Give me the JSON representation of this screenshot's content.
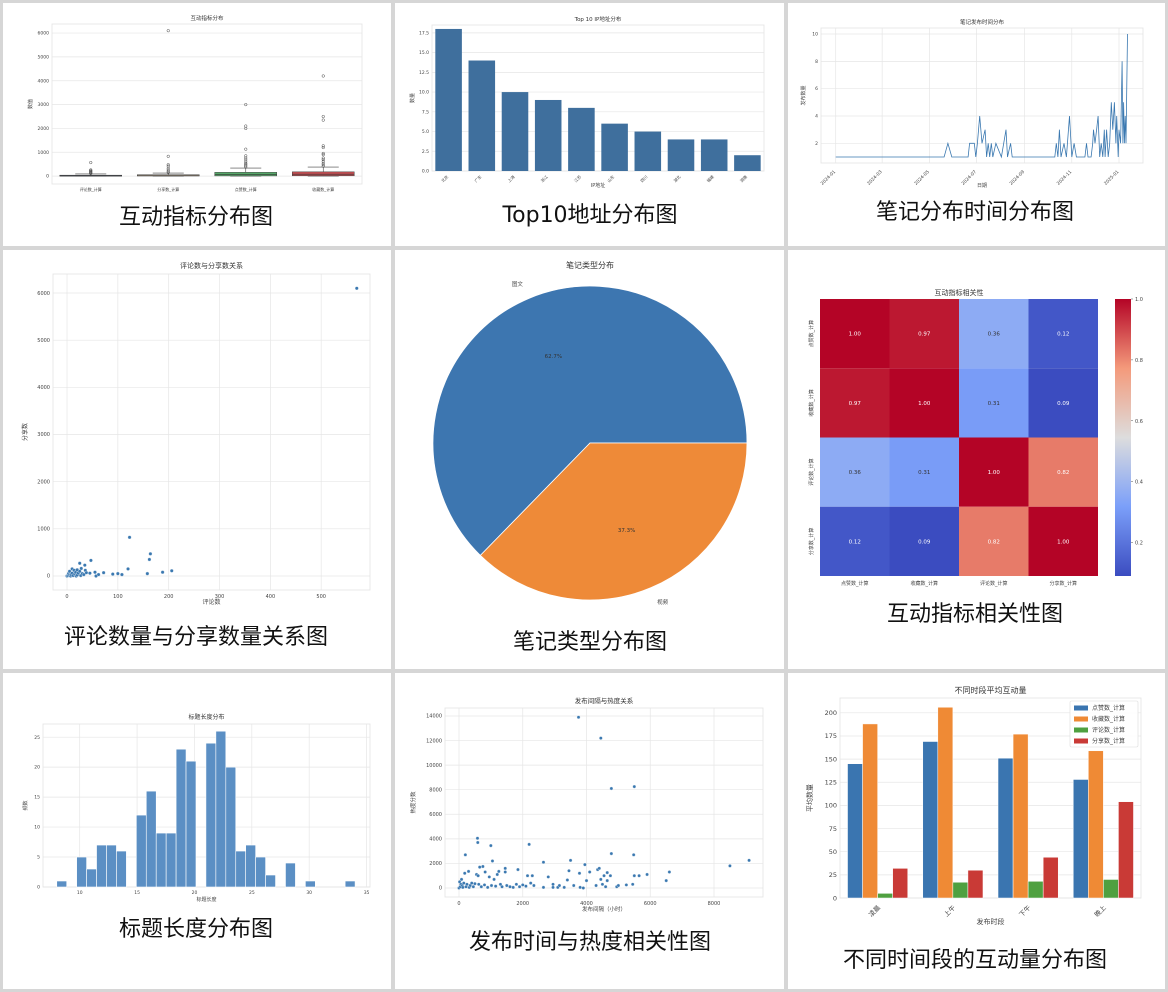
{
  "panels": [
    {
      "caption": "互动指标分布图"
    },
    {
      "caption": "Top10地址分布图"
    },
    {
      "caption": "笔记分布时间分布图"
    },
    {
      "caption": "评论数量与分享数量关系图"
    },
    {
      "caption": "笔记类型分布图"
    },
    {
      "caption": "互动指标相关性图"
    },
    {
      "caption": "标题长度分布图"
    },
    {
      "caption": "发布时间与热度相关性图"
    },
    {
      "caption": "不同时间段的互动量分布图"
    }
  ],
  "chart_data": [
    {
      "type": "box",
      "title": "互动指标分布",
      "xlabel": "",
      "ylabel": "数值",
      "grid": true,
      "categories": [
        "评论数_计算",
        "分享数_计算",
        "点赞数_计算",
        "收藏数_计算"
      ],
      "colors": [
        "#4c72b0",
        "#c9b59a",
        "#55a868",
        "#c44e52"
      ],
      "ylim": [
        -330,
        6380
      ],
      "yticks": [
        0,
        1000,
        2000,
        3000,
        4000,
        5000,
        6000
      ],
      "boxes": [
        {
          "whisker_low": 0,
          "q1": 5,
          "median": 15,
          "q3": 40,
          "whisker_high": 90,
          "outliers": [
            110,
            140,
            170,
            200,
            230,
            260,
            570
          ]
        },
        {
          "whisker_low": 0,
          "q1": 5,
          "median": 20,
          "q3": 60,
          "whisker_high": 130,
          "outliers": [
            150,
            200,
            260,
            330,
            420,
            480,
            830,
            6100
          ]
        },
        {
          "whisker_low": 0,
          "q1": 10,
          "median": 60,
          "q3": 160,
          "whisker_high": 340,
          "outliers": [
            380,
            430,
            480,
            530,
            600,
            680,
            760,
            850,
            1130,
            2000,
            2100,
            3000
          ]
        },
        {
          "whisker_low": 0,
          "q1": 15,
          "median": 80,
          "q3": 180,
          "whisker_high": 380,
          "outliers": [
            420,
            480,
            540,
            620,
            700,
            760,
            900,
            950,
            1200,
            1270,
            2350,
            2500,
            4200
          ]
        }
      ]
    },
    {
      "type": "bar",
      "title": "Top 10 IP地址分布",
      "xlabel": "IP地址",
      "ylabel": "数量",
      "grid": true,
      "color": "#3f6f9d",
      "categories": [
        "北京",
        "广东",
        "上海",
        "浙江",
        "江苏",
        "山东",
        "四川",
        "湖北",
        "福建",
        "湖南"
      ],
      "values": [
        18,
        14,
        10,
        9,
        8,
        6,
        5,
        4,
        4,
        2
      ],
      "ylim": [
        0,
        18.5
      ],
      "yticks": [
        "0.0",
        "2.5",
        "5.0",
        "7.5",
        "10.0",
        "12.5",
        "15.0",
        "17.5"
      ]
    },
    {
      "type": "line",
      "title": "笔记发布时间分布",
      "xlabel": "日期",
      "ylabel": "发布数量",
      "grid": true,
      "color": "#3a78b0",
      "xlim": [
        "2023-12-13",
        "2025-02-01"
      ],
      "ylim": [
        0.56,
        10.44
      ],
      "xticks": [
        "2024-01",
        "2024-03",
        "2024-05",
        "2024-07",
        "2024-09",
        "2024-11",
        "2025-01"
      ],
      "yticks": [
        2,
        4,
        6,
        8,
        10
      ],
      "points": [
        [
          "2024-01-01",
          1
        ],
        [
          "2024-05-20",
          1
        ],
        [
          "2024-05-25",
          2
        ],
        [
          "2024-05-30",
          1
        ],
        [
          "2024-06-20",
          1
        ],
        [
          "2024-06-22",
          2
        ],
        [
          "2024-06-28",
          2
        ],
        [
          "2024-06-30",
          1
        ],
        [
          "2024-07-02",
          2
        ],
        [
          "2024-07-05",
          4
        ],
        [
          "2024-07-08",
          2
        ],
        [
          "2024-07-12",
          3
        ],
        [
          "2024-07-14",
          1
        ],
        [
          "2024-07-16",
          2
        ],
        [
          "2024-07-18",
          1
        ],
        [
          "2024-07-20",
          2
        ],
        [
          "2024-07-22",
          1
        ],
        [
          "2024-07-26",
          2
        ],
        [
          "2024-08-02",
          1
        ],
        [
          "2024-08-08",
          3
        ],
        [
          "2024-08-10",
          1
        ],
        [
          "2024-08-14",
          2
        ],
        [
          "2024-08-16",
          1
        ],
        [
          "2024-10-10",
          1
        ],
        [
          "2024-10-12",
          2
        ],
        [
          "2024-10-14",
          1
        ],
        [
          "2024-10-16",
          3
        ],
        [
          "2024-10-18",
          1
        ],
        [
          "2024-10-22",
          2
        ],
        [
          "2024-10-25",
          1
        ],
        [
          "2024-10-29",
          4
        ],
        [
          "2024-11-01",
          1
        ],
        [
          "2024-11-04",
          2
        ],
        [
          "2024-11-07",
          1
        ],
        [
          "2024-11-18",
          1
        ],
        [
          "2024-11-20",
          2
        ],
        [
          "2024-11-22",
          1
        ],
        [
          "2024-11-26",
          1
        ],
        [
          "2024-11-28",
          2
        ],
        [
          "2024-11-29",
          3
        ],
        [
          "2024-12-01",
          2
        ],
        [
          "2024-12-03",
          3
        ],
        [
          "2024-12-05",
          4
        ],
        [
          "2024-12-07",
          1
        ],
        [
          "2024-12-09",
          2
        ],
        [
          "2024-12-11",
          1
        ],
        [
          "2024-12-13",
          3
        ],
        [
          "2024-12-14",
          1
        ],
        [
          "2024-12-16",
          3
        ],
        [
          "2024-12-18",
          1
        ],
        [
          "2024-12-20",
          2
        ],
        [
          "2024-12-22",
          5
        ],
        [
          "2024-12-24",
          3
        ],
        [
          "2024-12-26",
          5
        ],
        [
          "2024-12-28",
          2
        ],
        [
          "2024-12-29",
          4
        ],
        [
          "2024-12-31",
          1
        ],
        [
          "2025-01-01",
          3
        ],
        [
          "2025-01-03",
          2
        ],
        [
          "2025-01-05",
          8
        ],
        [
          "2025-01-06",
          2
        ],
        [
          "2025-01-07",
          5
        ],
        [
          "2025-01-08",
          2
        ],
        [
          "2025-01-09",
          4
        ],
        [
          "2025-01-10",
          2
        ],
        [
          "2025-01-12",
          10
        ]
      ]
    },
    {
      "type": "scatter",
      "title": "评论数与分享数关系",
      "xlabel": "评论数",
      "ylabel": "分享数",
      "grid": true,
      "color": "#3a78b0",
      "xlim": [
        -27.6,
        596
      ],
      "ylim": [
        -297,
        6403
      ],
      "xticks": [
        0,
        100,
        200,
        300,
        400,
        500
      ],
      "yticks": [
        0,
        1000,
        2000,
        3000,
        4000,
        5000,
        6000
      ],
      "points": [
        [
          0,
          0
        ],
        [
          2,
          10
        ],
        [
          3,
          50
        ],
        [
          5,
          20
        ],
        [
          5,
          100
        ],
        [
          7,
          0
        ],
        [
          8,
          30
        ],
        [
          10,
          150
        ],
        [
          10,
          60
        ],
        [
          12,
          10
        ],
        [
          14,
          120
        ],
        [
          15,
          40
        ],
        [
          17,
          80
        ],
        [
          18,
          0
        ],
        [
          20,
          130
        ],
        [
          20,
          20
        ],
        [
          22,
          60
        ],
        [
          25,
          270
        ],
        [
          25,
          100
        ],
        [
          27,
          10
        ],
        [
          28,
          160
        ],
        [
          30,
          50
        ],
        [
          33,
          30
        ],
        [
          35,
          230
        ],
        [
          36,
          120
        ],
        [
          38,
          70
        ],
        [
          45,
          60
        ],
        [
          47,
          330
        ],
        [
          55,
          80
        ],
        [
          57,
          0
        ],
        [
          62,
          30
        ],
        [
          72,
          70
        ],
        [
          90,
          40
        ],
        [
          100,
          50
        ],
        [
          108,
          30
        ],
        [
          120,
          150
        ],
        [
          123,
          820
        ],
        [
          158,
          50
        ],
        [
          162,
          350
        ],
        [
          164,
          470
        ],
        [
          188,
          80
        ],
        [
          206,
          110
        ],
        [
          570,
          6100
        ]
      ]
    },
    {
      "type": "pie",
      "title": "笔记类型分布",
      "labels": [
        "图文",
        "视频"
      ],
      "values": [
        62.7,
        37.3
      ],
      "pct_labels": [
        "62.7%",
        "37.3%"
      ],
      "colors": [
        "#3d76b0",
        "#ee8a38"
      ]
    },
    {
      "type": "heatmap",
      "title": "互动指标相关性",
      "labels": [
        "点赞数_计算",
        "收藏数_计算",
        "评论数_计算",
        "分享数_计算"
      ],
      "matrix": [
        [
          1.0,
          0.97,
          0.36,
          0.12
        ],
        [
          0.97,
          1.0,
          0.31,
          0.09
        ],
        [
          0.36,
          0.31,
          1.0,
          0.82
        ],
        [
          0.12,
          0.09,
          0.82,
          1.0
        ]
      ],
      "cell_labels": [
        [
          "1.00",
          "0.97",
          "0.36",
          "0.12"
        ],
        [
          "0.97",
          "1.00",
          "0.31",
          "0.09"
        ],
        [
          "0.36",
          "0.31",
          "1.00",
          "0.82"
        ],
        [
          "0.12",
          "0.09",
          "0.82",
          "1.00"
        ]
      ],
      "colormap": "coolwarm",
      "vrange": [
        0.09,
        1.0
      ],
      "colorbar_ticks": [
        "0.2",
        "0.4",
        "0.6",
        "0.8",
        "1.0"
      ]
    },
    {
      "type": "histogram",
      "title": "标题长度分布",
      "xlabel": "标题长度",
      "ylabel": "频数",
      "grid": true,
      "color": "#5b8fc4",
      "bins": {
        "start": 8,
        "end": 34,
        "count": 30
      },
      "counts": [
        1,
        0,
        5,
        3,
        7,
        7,
        6,
        0,
        12,
        16,
        9,
        9,
        23,
        21,
        0,
        24,
        26,
        20,
        6,
        7,
        5,
        2,
        0,
        4,
        0,
        1,
        0,
        0,
        0,
        1
      ],
      "xlim": [
        6.8,
        35.3
      ],
      "ylim": [
        0,
        27.2
      ],
      "xticks": [
        10,
        15,
        20,
        25,
        30,
        35
      ],
      "yticks": [
        0,
        5,
        10,
        15,
        20,
        25
      ]
    },
    {
      "type": "scatter",
      "title": "发布间隔与热度关系",
      "xlabel": "发布间隔（小时）",
      "ylabel": "热度分数",
      "grid": true,
      "color": "#3a78b0",
      "xlim": [
        -439,
        9537
      ],
      "ylim": [
        -733,
        14650
      ],
      "xticks": [
        0,
        2000,
        4000,
        6000,
        8000
      ],
      "yticks": [
        0,
        2000,
        4000,
        6000,
        8000,
        10000,
        12000,
        14000
      ],
      "points": [
        [
          0,
          0
        ],
        [
          20,
          500
        ],
        [
          40,
          100
        ],
        [
          60,
          300
        ],
        [
          80,
          700
        ],
        [
          100,
          200
        ],
        [
          120,
          50
        ],
        [
          150,
          400
        ],
        [
          180,
          1200
        ],
        [
          200,
          2700
        ],
        [
          220,
          100
        ],
        [
          250,
          300
        ],
        [
          300,
          1350
        ],
        [
          320,
          50
        ],
        [
          350,
          200
        ],
        [
          400,
          400
        ],
        [
          450,
          100
        ],
        [
          500,
          350
        ],
        [
          550,
          1100
        ],
        [
          580,
          4050
        ],
        [
          590,
          3700
        ],
        [
          600,
          1000
        ],
        [
          620,
          300
        ],
        [
          650,
          1700
        ],
        [
          700,
          100
        ],
        [
          750,
          1750
        ],
        [
          800,
          250
        ],
        [
          820,
          1300
        ],
        [
          900,
          50
        ],
        [
          950,
          900
        ],
        [
          1000,
          3450
        ],
        [
          1020,
          200
        ],
        [
          1050,
          2200
        ],
        [
          1100,
          700
        ],
        [
          1150,
          150
        ],
        [
          1200,
          1100
        ],
        [
          1250,
          1350
        ],
        [
          1300,
          300
        ],
        [
          1350,
          100
        ],
        [
          1450,
          1600
        ],
        [
          1450,
          1300
        ],
        [
          1500,
          200
        ],
        [
          1600,
          100
        ],
        [
          1700,
          50
        ],
        [
          1800,
          300
        ],
        [
          1850,
          1500
        ],
        [
          1900,
          100
        ],
        [
          2000,
          250
        ],
        [
          2100,
          150
        ],
        [
          2150,
          1000
        ],
        [
          2200,
          3550
        ],
        [
          2250,
          400
        ],
        [
          2300,
          1000
        ],
        [
          2350,
          200
        ],
        [
          2650,
          2100
        ],
        [
          2650,
          50
        ],
        [
          2800,
          900
        ],
        [
          2950,
          300
        ],
        [
          2950,
          50
        ],
        [
          3100,
          50
        ],
        [
          3150,
          200
        ],
        [
          3300,
          50
        ],
        [
          3400,
          650
        ],
        [
          3450,
          1400
        ],
        [
          3500,
          2250
        ],
        [
          3600,
          200
        ],
        [
          3750,
          13900
        ],
        [
          3780,
          1200
        ],
        [
          3800,
          50
        ],
        [
          3900,
          0
        ],
        [
          3950,
          1900
        ],
        [
          4000,
          600
        ],
        [
          4100,
          1300
        ],
        [
          4300,
          200
        ],
        [
          4350,
          1500
        ],
        [
          4400,
          1600
        ],
        [
          4450,
          12200
        ],
        [
          4450,
          700
        ],
        [
          4500,
          300
        ],
        [
          4550,
          1000
        ],
        [
          4600,
          100
        ],
        [
          4650,
          1250
        ],
        [
          4650,
          600
        ],
        [
          4750,
          1000
        ],
        [
          4780,
          8100
        ],
        [
          4780,
          2800
        ],
        [
          4950,
          100
        ],
        [
          5000,
          200
        ],
        [
          5250,
          250
        ],
        [
          5450,
          300
        ],
        [
          5480,
          2700
        ],
        [
          5500,
          8250
        ],
        [
          5500,
          1000
        ],
        [
          5650,
          1000
        ],
        [
          5900,
          1100
        ],
        [
          6500,
          600
        ],
        [
          6600,
          1300
        ],
        [
          8500,
          1800
        ],
        [
          9100,
          2250
        ]
      ]
    },
    {
      "type": "bar",
      "title": "不同时段平均互动量",
      "xlabel": "发布时段",
      "ylabel": "平均数量",
      "grid": true,
      "legend": "top-right",
      "categories": [
        "凌晨",
        "上午",
        "下午",
        "晚上"
      ],
      "ylim": [
        0,
        216
      ],
      "yticks": [
        0,
        25,
        50,
        75,
        100,
        125,
        150,
        175,
        200
      ],
      "series": [
        {
          "name": "点赞数_计算",
          "color": "#3a75b0",
          "values": [
            145,
            169,
            151,
            128
          ]
        },
        {
          "name": "收藏数_计算",
          "color": "#ef8a35",
          "values": [
            188,
            206,
            177,
            159
          ]
        },
        {
          "name": "评论数_计算",
          "color": "#4fa040",
          "values": [
            5,
            17,
            18,
            20
          ]
        },
        {
          "name": "分享数_计算",
          "color": "#c93a36",
          "values": [
            32,
            30,
            44,
            104
          ]
        }
      ]
    }
  ]
}
